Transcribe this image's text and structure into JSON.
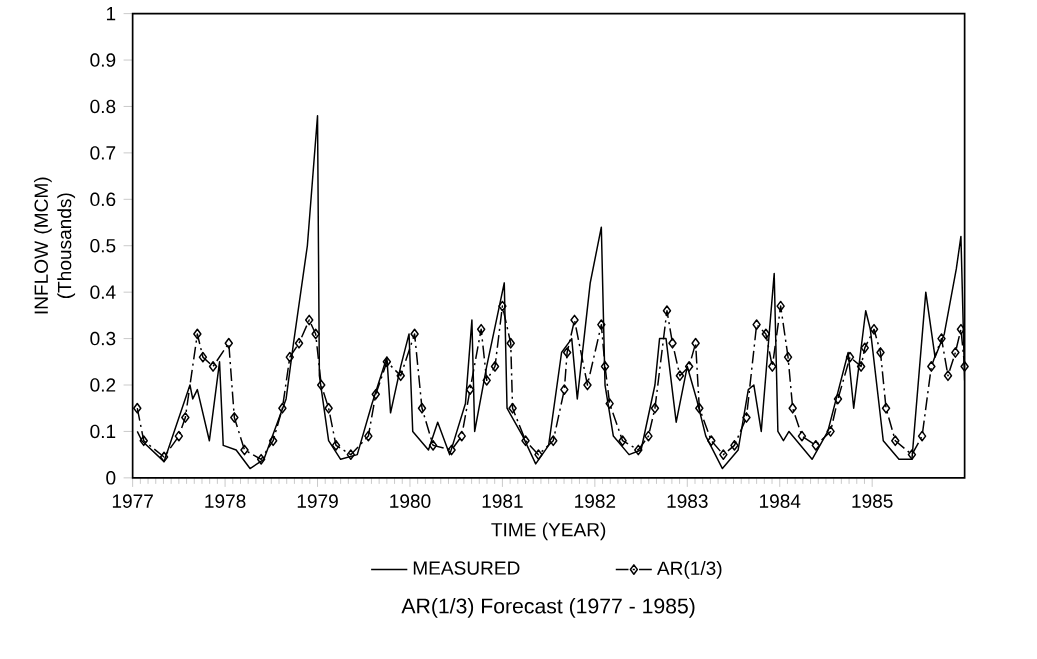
{
  "chart_data": {
    "type": "line",
    "title": "AR(1/3) Forecast (1977 - 1985)",
    "xlabel": "TIME (YEAR)",
    "ylabel": "INFLOW (MCM) (Thousands)",
    "xlim": [
      1977,
      1986
    ],
    "xticks": [
      1977,
      1978,
      1979,
      1980,
      1981,
      1982,
      1983,
      1984,
      1985
    ],
    "ylim": [
      0,
      1
    ],
    "yticks": [
      0,
      0.1,
      0.2,
      0.3,
      0.4,
      0.5,
      0.6,
      0.7,
      0.8,
      0.9,
      1
    ],
    "legend": "bottom",
    "grid": false,
    "series": [
      {
        "name": "MEASURED",
        "color": "#000000",
        "line_style": "solid",
        "marker": "none",
        "x": [
          1977.05,
          1977.1,
          1977.34,
          1977.62,
          1977.65,
          1977.7,
          1977.83,
          1977.94,
          1977.98,
          1978.12,
          1978.27,
          1978.42,
          1978.66,
          1978.74,
          1978.89,
          1979.0,
          1979.02,
          1979.12,
          1979.25,
          1979.43,
          1979.59,
          1979.75,
          1979.79,
          1979.9,
          1979.99,
          1980.03,
          1980.2,
          1980.3,
          1980.43,
          1980.6,
          1980.67,
          1980.7,
          1980.83,
          1981.02,
          1981.05,
          1981.22,
          1981.36,
          1981.5,
          1981.64,
          1981.75,
          1981.81,
          1981.95,
          1982.07,
          1982.11,
          1982.2,
          1982.37,
          1982.5,
          1982.65,
          1982.7,
          1982.77,
          1982.88,
          1983.0,
          1983.1,
          1983.2,
          1983.38,
          1983.55,
          1983.66,
          1983.72,
          1983.8,
          1983.89,
          1983.94,
          1983.98,
          1984.04,
          1984.1,
          1984.35,
          1984.52,
          1984.74,
          1984.8,
          1984.93,
          1984.98,
          1985.12,
          1985.29,
          1985.43,
          1985.58,
          1985.68,
          1985.78,
          1985.91,
          1985.96,
          1986.0
        ],
        "values": [
          0.1,
          0.08,
          0.035,
          0.2,
          0.17,
          0.19,
          0.08,
          0.25,
          0.07,
          0.06,
          0.02,
          0.04,
          0.17,
          0.29,
          0.5,
          0.78,
          0.22,
          0.08,
          0.04,
          0.05,
          0.16,
          0.26,
          0.14,
          0.24,
          0.31,
          0.1,
          0.06,
          0.12,
          0.05,
          0.16,
          0.34,
          0.1,
          0.24,
          0.42,
          0.15,
          0.09,
          0.03,
          0.07,
          0.27,
          0.3,
          0.17,
          0.42,
          0.54,
          0.2,
          0.09,
          0.05,
          0.06,
          0.2,
          0.3,
          0.3,
          0.12,
          0.24,
          0.17,
          0.09,
          0.02,
          0.06,
          0.19,
          0.2,
          0.1,
          0.32,
          0.44,
          0.1,
          0.08,
          0.1,
          0.04,
          0.1,
          0.27,
          0.15,
          0.36,
          0.32,
          0.08,
          0.04,
          0.04,
          0.4,
          0.26,
          0.31,
          0.45,
          0.52,
          0.21
        ]
      },
      {
        "name": "AR(1/3)",
        "color": "#000000",
        "line_style": "dashed",
        "marker": "diamond",
        "x": [
          1977.05,
          1977.12,
          1977.34,
          1977.5,
          1977.57,
          1977.7,
          1977.76,
          1977.87,
          1978.04,
          1978.1,
          1978.21,
          1978.39,
          1978.52,
          1978.62,
          1978.7,
          1978.8,
          1978.91,
          1978.98,
          1979.04,
          1979.12,
          1979.2,
          1979.36,
          1979.55,
          1979.63,
          1979.75,
          1979.9,
          1980.05,
          1980.13,
          1980.25,
          1980.45,
          1980.56,
          1980.65,
          1980.77,
          1980.83,
          1980.92,
          1981.0,
          1981.09,
          1981.11,
          1981.25,
          1981.39,
          1981.55,
          1981.67,
          1981.7,
          1981.78,
          1981.92,
          1982.07,
          1982.11,
          1982.16,
          1982.3,
          1982.47,
          1982.58,
          1982.65,
          1982.78,
          1982.84,
          1982.92,
          1983.02,
          1983.09,
          1983.13,
          1983.26,
          1983.39,
          1983.51,
          1983.64,
          1983.75,
          1983.85,
          1983.92,
          1984.01,
          1984.09,
          1984.14,
          1984.24,
          1984.39,
          1984.55,
          1984.63,
          1984.76,
          1984.88,
          1984.92,
          1985.02,
          1985.09,
          1985.15,
          1985.25,
          1985.43,
          1985.54,
          1985.64,
          1985.75,
          1985.82,
          1985.9,
          1985.96,
          1986.0
        ],
        "values": [
          0.15,
          0.08,
          0.045,
          0.09,
          0.13,
          0.31,
          0.26,
          0.24,
          0.29,
          0.13,
          0.06,
          0.04,
          0.08,
          0.15,
          0.26,
          0.29,
          0.34,
          0.31,
          0.2,
          0.15,
          0.07,
          0.05,
          0.09,
          0.18,
          0.25,
          0.22,
          0.31,
          0.15,
          0.07,
          0.06,
          0.09,
          0.19,
          0.32,
          0.21,
          0.24,
          0.37,
          0.29,
          0.15,
          0.08,
          0.05,
          0.08,
          0.19,
          0.27,
          0.34,
          0.2,
          0.33,
          0.24,
          0.16,
          0.08,
          0.06,
          0.09,
          0.15,
          0.36,
          0.29,
          0.22,
          0.24,
          0.29,
          0.15,
          0.08,
          0.05,
          0.07,
          0.13,
          0.33,
          0.31,
          0.24,
          0.37,
          0.26,
          0.15,
          0.09,
          0.07,
          0.1,
          0.17,
          0.26,
          0.24,
          0.28,
          0.32,
          0.27,
          0.15,
          0.08,
          0.05,
          0.09,
          0.24,
          0.3,
          0.22,
          0.27,
          0.32,
          0.24
        ]
      }
    ]
  }
}
